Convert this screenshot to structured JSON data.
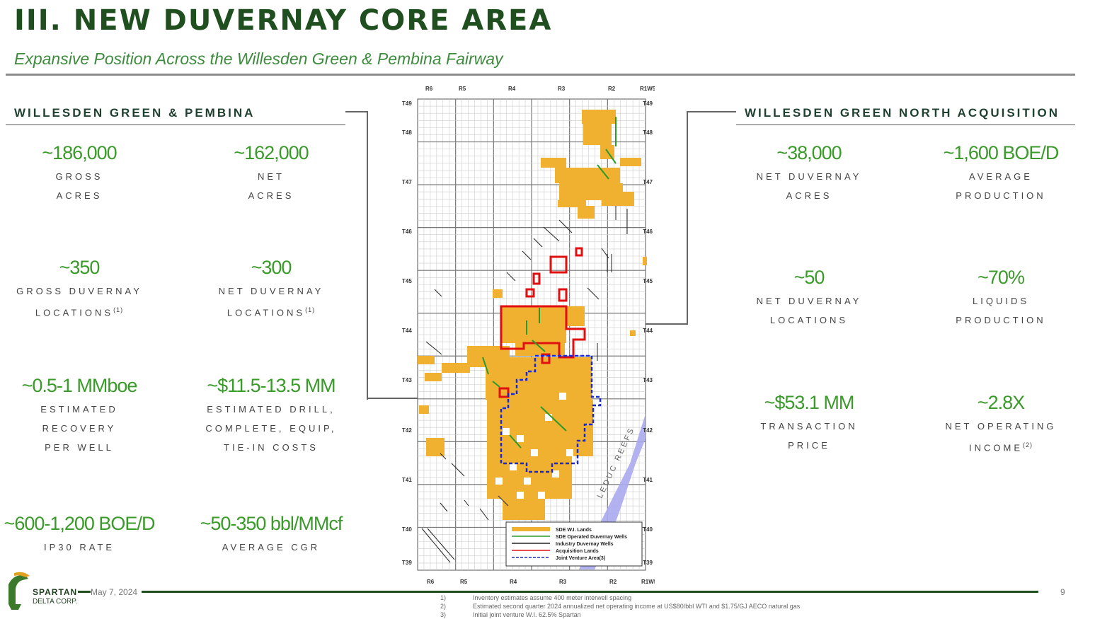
{
  "header": {
    "title": "III. NEW DUVERNAY CORE AREA",
    "subtitle": "Expansive Position Across the Willesden Green & Pembina Fairway"
  },
  "left_panel": {
    "title": "WILLESDEN GREEN & PEMBINA",
    "stats": [
      {
        "value": "~186,000",
        "label": "GROSS\nACRES",
        "sup": ""
      },
      {
        "value": "~162,000",
        "label": "NET\nACRES",
        "sup": ""
      },
      {
        "value": "~350",
        "label": "GROSS DUVERNAY\nLOCATIONS",
        "sup": "(1)"
      },
      {
        "value": "~300",
        "label": "NET DUVERNAY\nLOCATIONS",
        "sup": "(1)"
      },
      {
        "value": "~0.5-1 MMboe",
        "label": "ESTIMATED\nRECOVERY\nPER WELL",
        "sup": ""
      },
      {
        "value": "~$11.5-13.5 MM",
        "label": "ESTIMATED DRILL,\nCOMPLETE, EQUIP,\nTIE-IN COSTS",
        "sup": ""
      },
      {
        "value": "~600-1,200 BOE/D",
        "label": "IP30 RATE",
        "sup": ""
      },
      {
        "value": "~50-350 bbl/MMcf",
        "label": "AVERAGE CGR",
        "sup": ""
      }
    ]
  },
  "right_panel": {
    "title": "WILLESDEN GREEN NORTH ACQUISITION",
    "stats": [
      {
        "value": "~38,000",
        "label": "NET DUVERNAY\nACRES",
        "sup": ""
      },
      {
        "value": "~1,600 BOE/D",
        "label": "AVERAGE\nPRODUCTION",
        "sup": ""
      },
      {
        "value": "~50",
        "label": "NET DUVERNAY\nLOCATIONS",
        "sup": ""
      },
      {
        "value": "~70%",
        "label": "LIQUIDS\nPRODUCTION",
        "sup": ""
      },
      {
        "value": "~$53.1 MM",
        "label": "TRANSACTION\nPRICE",
        "sup": ""
      },
      {
        "value": "~2.8X",
        "label": "NET OPERATING\nINCOME",
        "sup": "(2)"
      }
    ]
  },
  "map": {
    "ranges": [
      "R6",
      "R5",
      "R4",
      "R3",
      "R2",
      "R1W5"
    ],
    "townships": [
      "T49",
      "T48",
      "T47",
      "T46",
      "T45",
      "T44",
      "T43",
      "T42",
      "T41",
      "T40",
      "T39"
    ],
    "reef_label": "LEDUC REEFS",
    "legend": [
      {
        "label": "SDE W.I. Lands",
        "color": "#f0b030",
        "style": "fill"
      },
      {
        "label": "SDE Operated Duvernay Wells",
        "color": "#2a9a2a",
        "style": "line"
      },
      {
        "label": "Industry Duvernay Wells",
        "color": "#222222",
        "style": "line"
      },
      {
        "label": "Acquisition Lands",
        "color": "#e01010",
        "style": "line"
      },
      {
        "label": "Joint Venture Area",
        "color": "#1a2ad0",
        "style": "dash",
        "sup": "(3)"
      }
    ],
    "colors": {
      "wi_lands": "#f0b030",
      "acquisition": "#e01010",
      "jv": "#1a2ad0",
      "reef": "#aaaaee",
      "sde_wells": "#2a9a2a"
    }
  },
  "footer": {
    "company_line1": "SPARTAN",
    "company_line2": "DELTA CORP.",
    "date": "May 7, 2024",
    "page_number": "9",
    "notes": [
      {
        "num": "1)",
        "text": "Inventory estimates assume 400 meter interwell spacing"
      },
      {
        "num": "2)",
        "text": "Estimated second quarter 2024 annualized net operating income at US$80/bbl WTI and $1.75/GJ AECO natural gas"
      },
      {
        "num": "3)",
        "text": "Initial joint venture W.I. 62.5% Spartan"
      }
    ]
  },
  "colors": {
    "title": "#1f4f1f",
    "accent": "#3a9a2a"
  }
}
